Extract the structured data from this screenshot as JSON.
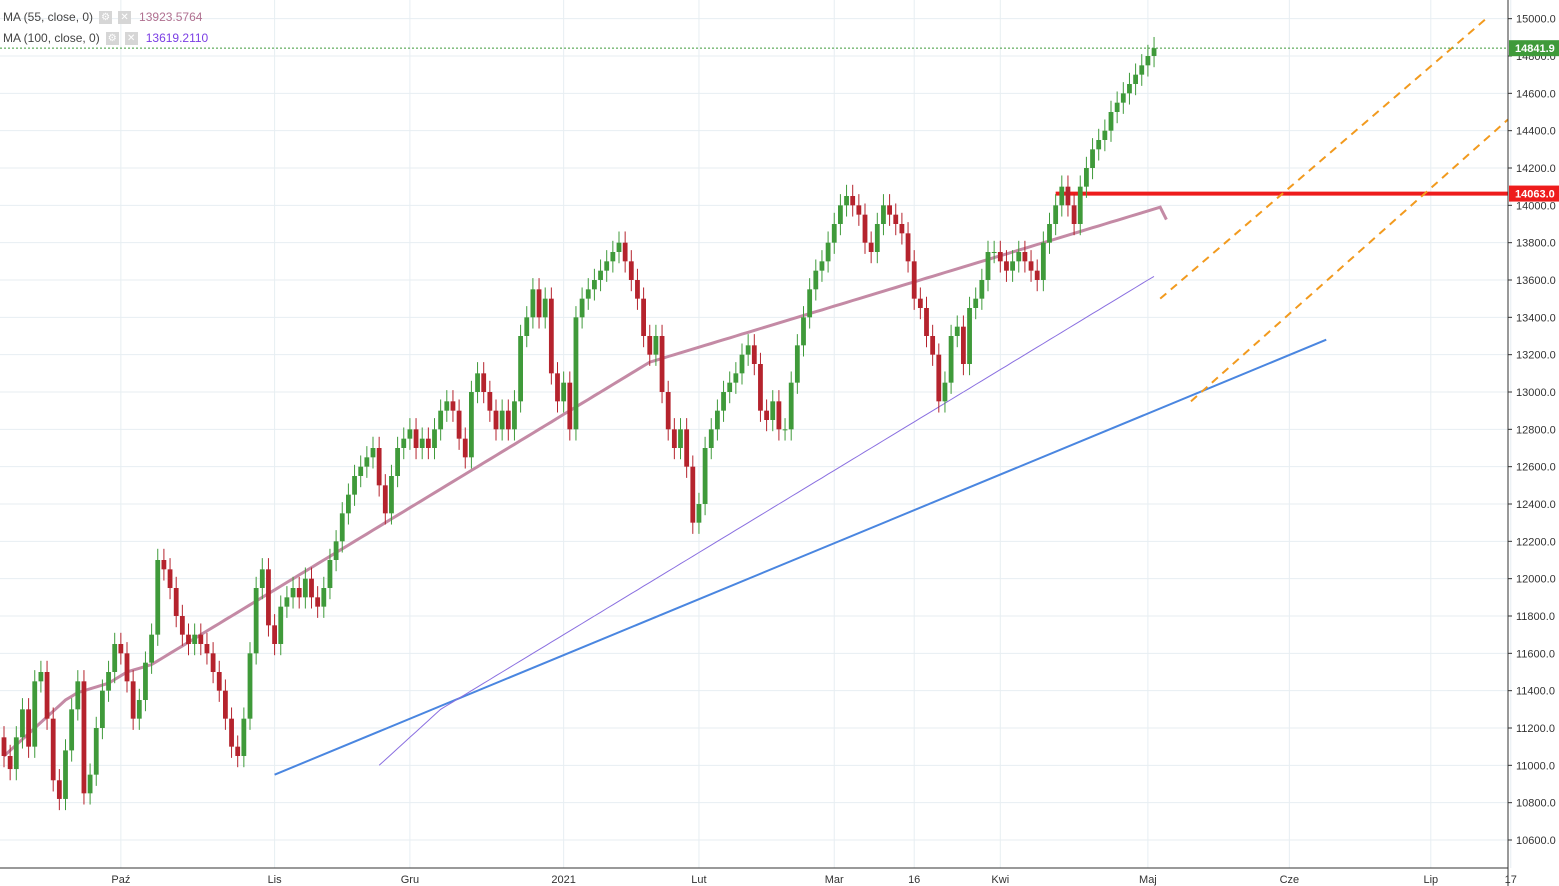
{
  "legend": [
    {
      "label": "MA (55, close, 0)",
      "value": "13923.5764",
      "color": "#b07090"
    },
    {
      "label": "MA (100, close, 0)",
      "value": "13619.2110",
      "color": "#7b3fe4"
    }
  ],
  "colors": {
    "up": "#3f9a3a",
    "down": "#b5232d",
    "ma55": "#c48aa5",
    "ma100": "#8a6fe0",
    "trend": "#4a86e0",
    "channel": "#f29a1e",
    "resistance": "#ee1c1c",
    "grid": "#e7eef2"
  },
  "price_tags": [
    {
      "text": "14841.9",
      "value": 14841.9,
      "color": "#3f9a3a"
    },
    {
      "text": "14063.0",
      "value": 14063.0,
      "color": "#ee1c1c"
    }
  ],
  "chart_data": {
    "type": "candlestick",
    "ylim": [
      10450,
      15100
    ],
    "y_ticks": [
      10600,
      10800,
      11000,
      11200,
      11400,
      11600,
      11800,
      12000,
      12200,
      12400,
      12600,
      12800,
      13000,
      13200,
      13400,
      13600,
      13800,
      14000,
      14200,
      14400,
      14600,
      14800,
      15000
    ],
    "x_labels": [
      {
        "label": "Paź",
        "i": 19
      },
      {
        "label": "Lis",
        "i": 44
      },
      {
        "label": "Gru",
        "i": 66
      },
      {
        "label": "2021",
        "i": 91
      },
      {
        "label": "Lut",
        "i": 113
      },
      {
        "label": "Mar",
        "i": 135
      },
      {
        "label": "16",
        "i": 148
      },
      {
        "label": "Kwi",
        "i": 162
      },
      {
        "label": "Maj",
        "i": 186
      },
      {
        "label": "Cze",
        "i": 209
      },
      {
        "label": "Lip",
        "i": 232
      },
      {
        "label": "17",
        "i": 245
      }
    ],
    "closes": [
      11050,
      10980,
      11150,
      11300,
      11100,
      11450,
      11500,
      11250,
      10920,
      10820,
      11080,
      11300,
      11450,
      10850,
      10950,
      11200,
      11400,
      11500,
      11650,
      11600,
      11450,
      11250,
      11350,
      11550,
      11700,
      12100,
      12050,
      11950,
      11800,
      11700,
      11650,
      11700,
      11650,
      11600,
      11500,
      11400,
      11250,
      11100,
      11050,
      11250,
      11600,
      11950,
      12050,
      11750,
      11650,
      11850,
      11900,
      11950,
      11900,
      12000,
      11900,
      11850,
      11950,
      12100,
      12200,
      12350,
      12450,
      12550,
      12600,
      12650,
      12700,
      12500,
      12350,
      12550,
      12700,
      12750,
      12800,
      12700,
      12750,
      12700,
      12800,
      12900,
      12950,
      12900,
      12750,
      12650,
      13000,
      13100,
      13000,
      12900,
      12800,
      12900,
      12800,
      12950,
      13300,
      13400,
      13550,
      13400,
      13500,
      13100,
      12950,
      13050,
      12800,
      13400,
      13500,
      13550,
      13600,
      13650,
      13700,
      13750,
      13800,
      13700,
      13600,
      13500,
      13300,
      13200,
      13300,
      13000,
      12800,
      12700,
      12800,
      12600,
      12300,
      12400,
      12700,
      12800,
      12900,
      13000,
      13050,
      13100,
      13200,
      13250,
      13150,
      12900,
      12850,
      12950,
      12800,
      12800,
      13050,
      13250,
      13400,
      13550,
      13650,
      13700,
      13800,
      13900,
      14000,
      14050,
      14000,
      13950,
      13800,
      13750,
      13900,
      14000,
      13950,
      13900,
      13850,
      13700,
      13500,
      13450,
      13300,
      13200,
      12950,
      13050,
      13300,
      13350,
      13150,
      13450,
      13500,
      13600,
      13750,
      13750,
      13700,
      13650,
      13700,
      13750,
      13700,
      13650,
      13600,
      13800,
      13900,
      14000,
      14100,
      14000,
      13900,
      14100,
      14200,
      14300,
      14350,
      14400,
      14500,
      14550,
      14600,
      14650,
      14700,
      14750,
      14800,
      14841.9
    ],
    "opens": [
      11150,
      11050,
      10980,
      11150,
      11300,
      11100,
      11450,
      11500,
      11250,
      10920,
      10820,
      11080,
      11300,
      11450,
      10850,
      10950,
      11200,
      11400,
      11500,
      11650,
      11600,
      11450,
      11250,
      11350,
      11550,
      11700,
      12100,
      12050,
      11950,
      11800,
      11700,
      11650,
      11700,
      11650,
      11600,
      11500,
      11400,
      11250,
      11100,
      11050,
      11250,
      11600,
      11950,
      12050,
      11750,
      11650,
      11850,
      11900,
      11950,
      11900,
      12000,
      11900,
      11850,
      11950,
      12100,
      12200,
      12350,
      12450,
      12550,
      12600,
      12650,
      12700,
      12500,
      12350,
      12550,
      12700,
      12750,
      12800,
      12700,
      12750,
      12700,
      12800,
      12900,
      12950,
      12900,
      12750,
      12650,
      13000,
      13100,
      13000,
      12900,
      12800,
      12900,
      12800,
      12950,
      13300,
      13400,
      13550,
      13400,
      13500,
      13100,
      12950,
      13050,
      12800,
      13400,
      13500,
      13550,
      13600,
      13650,
      13700,
      13750,
      13800,
      13700,
      13600,
      13500,
      13300,
      13200,
      13300,
      13000,
      12800,
      12700,
      12800,
      12600,
      12300,
      12400,
      12700,
      12800,
      12900,
      13000,
      13050,
      13100,
      13200,
      13250,
      13150,
      12900,
      12850,
      12950,
      12800,
      12800,
      13050,
      13250,
      13400,
      13550,
      13650,
      13700,
      13800,
      13900,
      14000,
      14050,
      14000,
      13950,
      13800,
      13750,
      13900,
      14000,
      13950,
      13900,
      13850,
      13700,
      13500,
      13450,
      13300,
      13200,
      12950,
      13050,
      13300,
      13350,
      13150,
      13450,
      13500,
      13600,
      13750,
      13750,
      13700,
      13650,
      13700,
      13750,
      13700,
      13650,
      13600,
      13800,
      13900,
      14000,
      14100,
      14000,
      13900,
      14100,
      14200,
      14300,
      14350,
      14400,
      14500,
      14550,
      14600,
      14650,
      14700,
      14750,
      14800
    ],
    "ma55": [
      11050,
      11080,
      11110,
      11140,
      11170,
      11200,
      11230,
      11260,
      11290,
      11320,
      11350,
      11370,
      11390,
      11400,
      11410,
      11420,
      11430,
      11440,
      11460,
      11480,
      11500,
      11510,
      11520,
      11530,
      11540,
      11560,
      11580,
      11600,
      11620,
      11640,
      11660,
      11680,
      11700,
      11720,
      11740,
      11760,
      11780,
      11800,
      11820,
      11840,
      11860,
      11880,
      11900,
      11920,
      11940,
      11960,
      11980,
      12000,
      12020,
      12040,
      12060,
      12080,
      12100,
      12120,
      12140,
      12160,
      12180,
      12200,
      12220,
      12240,
      12260,
      12280,
      12300,
      12320,
      12340,
      12360,
      12380,
      12400,
      12420,
      12440,
      12460,
      12480,
      12500,
      12520,
      12540,
      12560,
      12580,
      12600,
      12620,
      12640,
      12660,
      12680,
      12700,
      12720,
      12740,
      12760,
      12780,
      12800,
      12820,
      12840,
      12860,
      12880,
      12900,
      12920,
      12940,
      12960,
      12980,
      13000,
      13020,
      13040,
      13060,
      13080,
      13100,
      13120,
      13140,
      13160,
      13170,
      13180,
      13190,
      13200,
      13210,
      13220,
      13230,
      13240,
      13250,
      13260,
      13270,
      13280,
      13290,
      13300,
      13310,
      13320,
      13330,
      13340,
      13350,
      13360,
      13370,
      13380,
      13390,
      13400,
      13410,
      13420,
      13430,
      13440,
      13450,
      13460,
      13470,
      13480,
      13490,
      13500,
      13510,
      13520,
      13530,
      13540,
      13550,
      13560,
      13570,
      13580,
      13590,
      13600,
      13610,
      13620,
      13630,
      13640,
      13650,
      13660,
      13670,
      13680,
      13690,
      13700,
      13710,
      13720,
      13730,
      13740,
      13750,
      13760,
      13770,
      13780,
      13790,
      13800,
      13810,
      13820,
      13830,
      13840,
      13850,
      13860,
      13870,
      13880,
      13890,
      13900,
      13910,
      13920,
      13930,
      13940,
      13950,
      13960,
      13970,
      13980,
      13990,
      13923.5764
    ],
    "ma100": [
      11000,
      11030,
      11060,
      11090,
      11120,
      11150,
      11180,
      11210,
      11240,
      11270,
      11300,
      11320,
      11340,
      11360,
      11380,
      11400,
      11420,
      11440,
      11460,
      11480,
      11500,
      11520,
      11540,
      11560,
      11580,
      11600,
      11620,
      11640,
      11660,
      11680,
      11700,
      11720,
      11740,
      11760,
      11780,
      11800,
      11820,
      11840,
      11860,
      11880,
      11900,
      11920,
      11940,
      11960,
      11980,
      12000,
      12020,
      12040,
      12060,
      12080,
      12100,
      12120,
      12140,
      12160,
      12180,
      12200,
      12220,
      12240,
      12260,
      12280,
      12300,
      12320,
      12340,
      12360,
      12380,
      12400,
      12420,
      12440,
      12460,
      12480,
      12500,
      12520,
      12540,
      12560,
      12580,
      12600,
      12620,
      12640,
      12660,
      12680,
      12700,
      12720,
      12740,
      12760,
      12780,
      12800,
      12820,
      12840,
      12860,
      12880,
      12900,
      12920,
      12940,
      12960,
      12980,
      13000,
      13020,
      13040,
      13060,
      13080,
      13100,
      13120,
      13140,
      13160,
      13180,
      13200,
      13220,
      13240,
      13260,
      13280,
      13300,
      13320,
      13340,
      13360,
      13380,
      13400,
      13420,
      13440,
      13460,
      13480,
      13500,
      13520,
      13540,
      13560,
      13580,
      13600,
      13619.211
    ]
  }
}
